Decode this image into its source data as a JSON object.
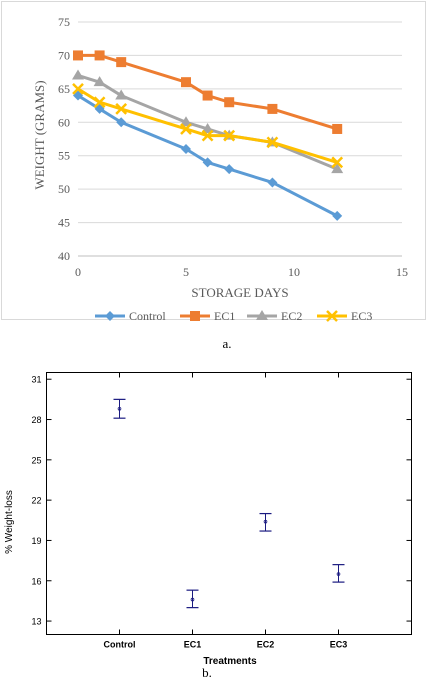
{
  "chart_data": [
    {
      "type": "line",
      "title": "",
      "xlabel": "STORAGE DAYS",
      "ylabel": "WEIGHT (GRAMS)",
      "xlim": [
        0,
        15
      ],
      "ylim": [
        40,
        75
      ],
      "xticks": [
        "0",
        "5",
        "10",
        "15"
      ],
      "yticks": [
        "40",
        "45",
        "50",
        "55",
        "60",
        "65",
        "70",
        "75"
      ],
      "grid": "horizontal",
      "legend": "bottom",
      "caption": "a.",
      "series": [
        {
          "name": "Control",
          "color": "#5B9BD5",
          "marker": "diamond",
          "x": [
            0,
            1,
            2,
            5,
            6,
            7,
            9,
            12
          ],
          "y": [
            64,
            62,
            60,
            56,
            54,
            53,
            51,
            46
          ]
        },
        {
          "name": "EC1",
          "color": "#ED7D31",
          "marker": "square",
          "x": [
            0,
            1,
            2,
            5,
            6,
            7,
            9,
            12
          ],
          "y": [
            70,
            70,
            69,
            66,
            64,
            63,
            62,
            59
          ]
        },
        {
          "name": "EC2",
          "color": "#A5A5A5",
          "marker": "triangle",
          "x": [
            0,
            1,
            2,
            5,
            6,
            7,
            9,
            12
          ],
          "y": [
            67,
            66,
            64,
            60,
            59,
            58,
            57,
            53
          ]
        },
        {
          "name": "EC3",
          "color": "#FFC000",
          "marker": "x",
          "x": [
            0,
            1,
            2,
            5,
            6,
            7,
            9,
            12
          ],
          "y": [
            65,
            63,
            62,
            59,
            58,
            58,
            57,
            54
          ]
        }
      ]
    },
    {
      "type": "errorbar",
      "title": "",
      "xlabel": "Treatments",
      "ylabel": "% Weight-loss",
      "ylim": [
        12,
        31.5
      ],
      "yticks": [
        "13",
        "16",
        "19",
        "22",
        "25",
        "28",
        "31"
      ],
      "categories": [
        "Control",
        "EC1",
        "EC2",
        "EC3"
      ],
      "color": "#1a1a80",
      "caption": "b.",
      "points": [
        {
          "category": "Control",
          "mean": 28.8,
          "low": 28.1,
          "high": 29.5
        },
        {
          "category": "EC1",
          "mean": 14.6,
          "low": 14.0,
          "high": 15.3
        },
        {
          "category": "EC2",
          "mean": 20.4,
          "low": 19.7,
          "high": 21.0
        },
        {
          "category": "EC3",
          "mean": 16.5,
          "low": 15.9,
          "high": 17.2
        }
      ]
    }
  ]
}
